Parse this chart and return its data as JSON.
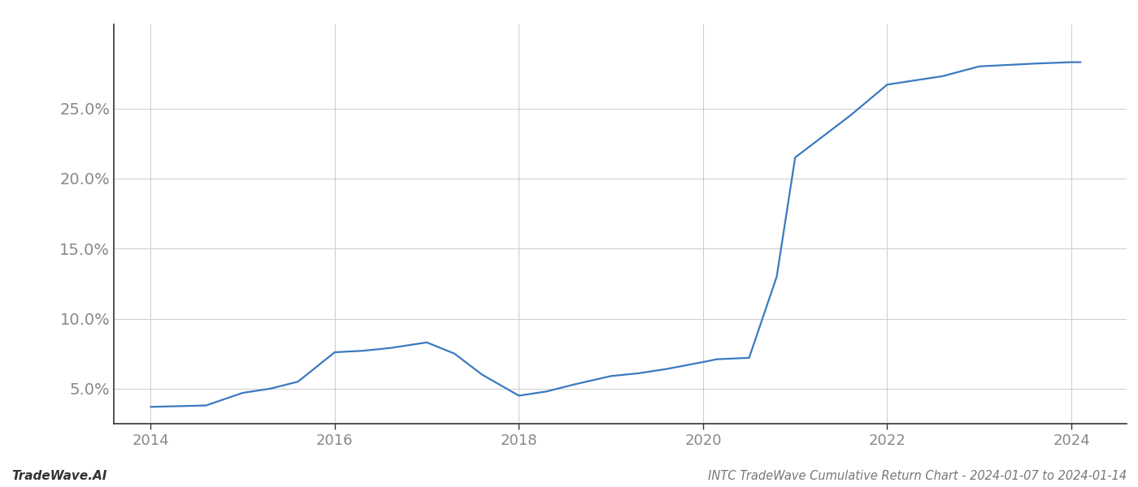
{
  "title": "INTC TradeWave Cumulative Return Chart - 2024-01-07 to 2024-01-14",
  "watermark": "TradeWave.AI",
  "line_color": "#3a7abf",
  "background_color": "#ffffff",
  "grid_color": "#cccccc",
  "years": [
    2014.0,
    2014.3,
    2014.6,
    2015.0,
    2015.3,
    2015.6,
    2016.0,
    2016.3,
    2016.6,
    2017.0,
    2017.3,
    2017.6,
    2018.0,
    2018.3,
    2018.6,
    2019.0,
    2019.3,
    2019.6,
    2020.0,
    2020.15,
    2020.5,
    2020.8,
    2021.0,
    2021.3,
    2021.6,
    2022.0,
    2022.3,
    2022.6,
    2023.0,
    2023.3,
    2023.6,
    2024.0,
    2024.1
  ],
  "values": [
    3.7,
    3.75,
    3.8,
    4.7,
    5.0,
    5.5,
    7.6,
    7.7,
    7.9,
    8.3,
    7.5,
    6.0,
    4.5,
    4.8,
    5.3,
    5.9,
    6.1,
    6.4,
    6.9,
    7.1,
    7.2,
    13.0,
    21.5,
    23.0,
    24.5,
    26.7,
    27.0,
    27.3,
    28.0,
    28.1,
    28.2,
    28.3,
    28.3
  ],
  "xlim": [
    2013.6,
    2024.6
  ],
  "ylim": [
    2.5,
    31.0
  ],
  "yticks": [
    5.0,
    10.0,
    15.0,
    20.0,
    25.0
  ],
  "xticks": [
    2014,
    2016,
    2018,
    2020,
    2022,
    2024
  ],
  "tick_label_color": "#888888",
  "title_color": "#777777",
  "title_fontsize": 10.5,
  "watermark_fontsize": 11,
  "line_width": 1.6,
  "ytick_fontsize": 14,
  "xtick_fontsize": 13
}
